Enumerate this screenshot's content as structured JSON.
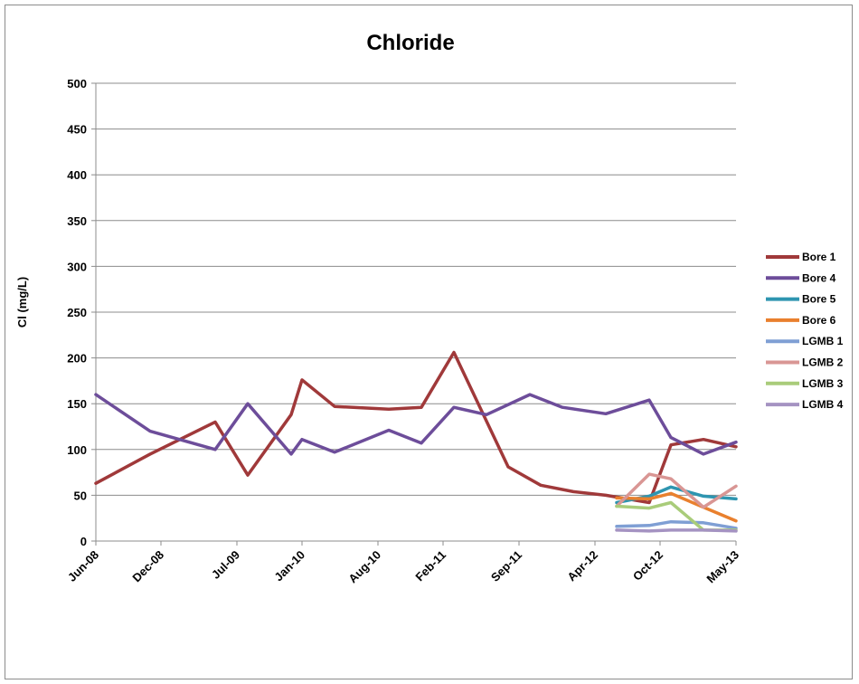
{
  "chart_data": {
    "type": "line",
    "title": "Chloride",
    "ylabel": "Cl (mg/L)",
    "xlabel": "",
    "ylim": [
      0,
      500
    ],
    "yticks": [
      0,
      50,
      100,
      150,
      200,
      250,
      300,
      350,
      400,
      450,
      500
    ],
    "xlim": [
      "2008-06",
      "2013-05"
    ],
    "xticks": [
      "Jun-08",
      "Dec-08",
      "Jul-09",
      "Jan-10",
      "Aug-10",
      "Feb-11",
      "Sep-11",
      "Apr-12",
      "Oct-12",
      "May-13"
    ],
    "grid": "horizontal",
    "legend_position": "right",
    "series": [
      {
        "name": "Bore 1",
        "color": "#a0393a",
        "points": [
          [
            "2008-06",
            63
          ],
          [
            "2008-11",
            95
          ],
          [
            "2009-05",
            130
          ],
          [
            "2009-08",
            72
          ],
          [
            "2009-12",
            138
          ],
          [
            "2010-01",
            176
          ],
          [
            "2010-04",
            147
          ],
          [
            "2010-09",
            144
          ],
          [
            "2010-12",
            146
          ],
          [
            "2011-03",
            206
          ],
          [
            "2011-08",
            81
          ],
          [
            "2011-11",
            61
          ],
          [
            "2012-02",
            54
          ],
          [
            "2012-05",
            50
          ],
          [
            "2012-09",
            42
          ],
          [
            "2012-11",
            105
          ],
          [
            "2013-02",
            111
          ],
          [
            "2013-05",
            103
          ]
        ]
      },
      {
        "name": "Bore 4",
        "color": "#6d4d9a",
        "points": [
          [
            "2008-06",
            160
          ],
          [
            "2008-11",
            120
          ],
          [
            "2009-05",
            100
          ],
          [
            "2009-08",
            150
          ],
          [
            "2009-12",
            95
          ],
          [
            "2010-01",
            111
          ],
          [
            "2010-04",
            97
          ],
          [
            "2010-09",
            121
          ],
          [
            "2010-12",
            107
          ],
          [
            "2011-03",
            146
          ],
          [
            "2011-06",
            138
          ],
          [
            "2011-10",
            160
          ],
          [
            "2012-01",
            146
          ],
          [
            "2012-05",
            139
          ],
          [
            "2012-09",
            154
          ],
          [
            "2012-11",
            113
          ],
          [
            "2013-02",
            95
          ],
          [
            "2013-05",
            108
          ]
        ]
      },
      {
        "name": "Bore 5",
        "color": "#2e95b0",
        "points": [
          [
            "2012-06",
            42
          ],
          [
            "2012-09",
            49
          ],
          [
            "2012-11",
            59
          ],
          [
            "2013-02",
            49
          ],
          [
            "2013-05",
            46
          ]
        ]
      },
      {
        "name": "Bore 6",
        "color": "#e9802e",
        "points": [
          [
            "2012-06",
            47
          ],
          [
            "2012-09",
            46
          ],
          [
            "2012-11",
            52
          ],
          [
            "2013-02",
            37
          ],
          [
            "2013-05",
            22
          ]
        ]
      },
      {
        "name": "LGMB 1",
        "color": "#7f9fd4",
        "points": [
          [
            "2012-06",
            16
          ],
          [
            "2012-09",
            17
          ],
          [
            "2012-11",
            21
          ],
          [
            "2013-02",
            20
          ],
          [
            "2013-05",
            14
          ]
        ]
      },
      {
        "name": "LGMB 2",
        "color": "#d99694",
        "points": [
          [
            "2012-06",
            38
          ],
          [
            "2012-09",
            73
          ],
          [
            "2012-11",
            68
          ],
          [
            "2013-02",
            37
          ],
          [
            "2013-05",
            60
          ]
        ]
      },
      {
        "name": "LGMB 3",
        "color": "#a9cc7a",
        "points": [
          [
            "2012-06",
            38
          ],
          [
            "2012-09",
            36
          ],
          [
            "2012-11",
            42
          ],
          [
            "2013-02",
            12
          ],
          [
            "2013-05",
            12
          ]
        ]
      },
      {
        "name": "LGMB 4",
        "color": "#a593c2",
        "points": [
          [
            "2012-06",
            12
          ],
          [
            "2012-09",
            11
          ],
          [
            "2012-11",
            12
          ],
          [
            "2013-02",
            12
          ],
          [
            "2013-05",
            11
          ]
        ]
      }
    ]
  }
}
